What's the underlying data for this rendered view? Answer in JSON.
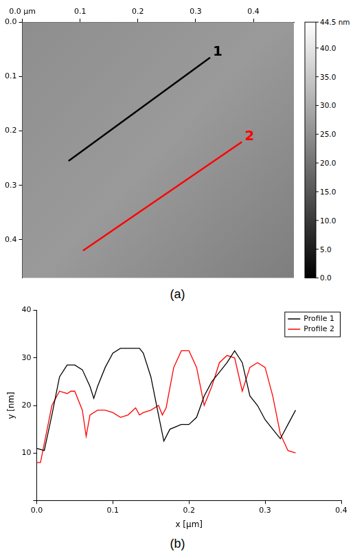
{
  "chart_data": [
    {
      "type": "image",
      "panel": "(a)",
      "xlim": [
        0,
        0.47
      ],
      "ylim": [
        0,
        0.47
      ],
      "xticks": [
        {
          "value": 0,
          "label": "0.0 µm"
        },
        0.1,
        0.2,
        0.3,
        0.4
      ],
      "yticks": [
        {
          "value": 0,
          "label": "0.0"
        },
        0.1,
        0.2,
        0.3,
        0.4
      ],
      "grid": false,
      "colorbar": {
        "range": [
          0,
          44.5
        ],
        "ticks": [
          {
            "value": 0,
            "label": "0.0"
          },
          {
            "value": 5,
            "label": "5.0"
          },
          {
            "value": 10,
            "label": "10.0"
          },
          {
            "value": 15,
            "label": "15.0"
          },
          {
            "value": 20,
            "label": "20.0"
          },
          {
            "value": 25,
            "label": "25.0"
          },
          {
            "value": 30,
            "label": "30.0"
          },
          {
            "value": 35,
            "label": "35.0"
          },
          {
            "value": 40,
            "label": "40.0"
          },
          {
            "value": 44.5,
            "label": "44.5 nm"
          }
        ]
      },
      "lines": [
        {
          "label": "1",
          "color": "#000000",
          "x": [
            0.08,
            0.325
          ],
          "y": [
            0.255,
            0.065
          ]
        },
        {
          "label": "2",
          "color": "#ff0000",
          "x": [
            0.105,
            0.38
          ],
          "y": [
            0.42,
            0.22
          ]
        }
      ]
    },
    {
      "type": "line",
      "panel": "(b)",
      "x_label": "x [µm]",
      "y_label": "y [nm]",
      "xlim": [
        0,
        0.4
      ],
      "ylim": [
        0,
        40
      ],
      "xticks": [
        {
          "value": 0,
          "label": "0.0"
        },
        0.1,
        0.2,
        0.3,
        0.4
      ],
      "yticks": [
        0,
        10,
        20,
        30,
        40
      ],
      "grid": false,
      "legend": "upper right",
      "series": [
        {
          "name": "Profile 1",
          "color": "#000000",
          "x": [
            0,
            0.01,
            0.02,
            0.03,
            0.04,
            0.05,
            0.06,
            0.07,
            0.075,
            0.08,
            0.09,
            0.1,
            0.11,
            0.12,
            0.13,
            0.135,
            0.14,
            0.15,
            0.16,
            0.167,
            0.175,
            0.19,
            0.2,
            0.21,
            0.22,
            0.23,
            0.24,
            0.25,
            0.26,
            0.27,
            0.28,
            0.29,
            0.3,
            0.31,
            0.32,
            0.33,
            0.34
          ],
          "values": [
            11,
            10.5,
            18,
            26,
            28.5,
            28.5,
            27.5,
            24,
            21.5,
            24,
            28,
            31,
            32,
            32,
            32,
            32,
            31,
            26,
            18,
            12.5,
            15,
            16,
            16,
            17.5,
            22,
            25,
            27,
            29,
            31.5,
            29,
            22,
            20,
            17,
            15,
            13,
            16,
            19
          ]
        },
        {
          "name": "Profile 2",
          "color": "#ff0000",
          "x": [
            0,
            0.005,
            0.01,
            0.02,
            0.03,
            0.04,
            0.045,
            0.05,
            0.06,
            0.065,
            0.07,
            0.08,
            0.09,
            0.1,
            0.11,
            0.12,
            0.13,
            0.135,
            0.14,
            0.15,
            0.16,
            0.165,
            0.17,
            0.18,
            0.19,
            0.2,
            0.21,
            0.22,
            0.23,
            0.24,
            0.25,
            0.26,
            0.27,
            0.28,
            0.29,
            0.3,
            0.31,
            0.32,
            0.33,
            0.34
          ],
          "values": [
            8,
            8,
            12,
            20,
            23,
            22.5,
            23,
            23,
            19,
            13.5,
            18,
            19,
            19,
            18.5,
            17.5,
            18,
            19.5,
            18,
            18.5,
            19,
            20,
            18,
            19.5,
            28,
            31.5,
            31.5,
            28,
            20,
            24,
            29,
            30.5,
            30,
            23,
            28,
            29,
            28,
            22,
            14,
            10.5,
            10
          ]
        }
      ]
    }
  ]
}
